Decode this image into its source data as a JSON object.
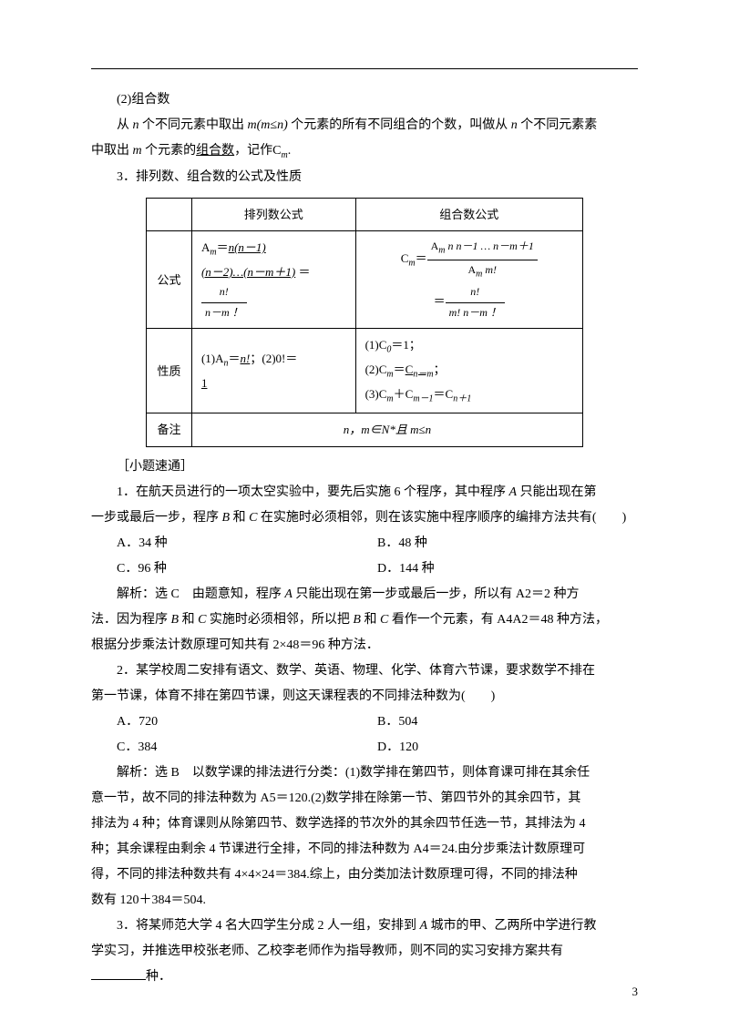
{
  "section1": {
    "title": "(2)组合数",
    "p1_a": "从 ",
    "p1_b": " 个不同元素中取出 ",
    "p1_c": " 个元素的所有不同组合的个数，叫做从 ",
    "p1_d": " 个不同元素素",
    "p1_line2_a": "中取出 ",
    "p1_line2_b": " 个元素的",
    "p1_underline": "组合数",
    "p1_line2_c": "，记作C",
    "p1_line2_d": "."
  },
  "section2_title": "3．排列数、组合数的公式及性质",
  "table": {
    "h_perm": "排列数公式",
    "h_comb": "组合数公式",
    "r1_label": "公式",
    "r1_perm_a": "A",
    "r1_perm_b": "＝",
    "r1_perm_u1": "n(n－1)",
    "r1_perm_u2": "(n－2)…(n－m＋1)",
    "r1_perm_eq": " ＝",
    "r1_frac_num": "n!",
    "r1_frac_den": "n－m ！",
    "r1_comb_a": "C",
    "r1_comb_b": "＝",
    "r1_comb_frac1_num_a": "A",
    "r1_comb_frac1_num_b": " n n－1 … n－m＋1",
    "r1_comb_frac1_den_a": "A",
    "r1_comb_frac1_den_b": " m!",
    "r1_comb_eq": "＝",
    "r1_comb_frac2_num": "n!",
    "r1_comb_frac2_den": "m! n－m ！",
    "r2_label": "性质",
    "r2_perm_a": "(1)A",
    "r2_perm_b": "＝",
    "r2_perm_u": "n!",
    "r2_perm_c": "；(2)0!＝",
    "r2_perm_d": "1",
    "r2_comb_1a": "(1)C",
    "r2_comb_1b": "＝1；",
    "r2_comb_2a": "(2)C",
    "r2_comb_2b": "＝",
    "r2_comb_2u": "C",
    "r2_comb_2c": "；",
    "r2_comb_3a": "(3)C",
    "r2_comb_3b": "＋C",
    "r2_comb_3c": "＝C",
    "r3_label": "备注",
    "r3_note": "n，m∈N*且 m≤n"
  },
  "quiz_header": "［小题速通］",
  "q1": {
    "stem_a": "1．在航天员进行的一项太空实验中，要先后实施 6 个程序，其中程序 ",
    "stem_b": " 只能出现在第",
    "line2_a": "一步或最后一步，程序 ",
    "line2_b": " 和 ",
    "line2_c": " 在实施时必须相邻，则在该实施中程序顺序的编排方法共有(　　)",
    "optA": "A．34 种",
    "optB": "B．48 种",
    "optC": "C．96 种",
    "optD": "D．144 种",
    "ans_a": "解析：选 C　由题意知，程序 ",
    "ans_b": " 只能出现在第一步或最后一步，所以有 A2＝2 种方",
    "ans_line2_a": "法．因为程序 ",
    "ans_line2_b": " 和 ",
    "ans_line2_c": " 实施时必须相邻，所以把 ",
    "ans_line2_d": " 和 ",
    "ans_line2_e": " 看作一个元素，有 A4A2＝48 种方法，",
    "ans_line3": "根据分步乘法计数原理可知共有 2×48＝96 种方法．"
  },
  "q2": {
    "stem_a": "2．某学校周二安排有语文、数学、英语、物理、化学、体育六节课，要求数学不排在",
    "stem_b": "第一节课，体育不排在第四节课，则这天课程表的不同排法种数为(　　)",
    "optA": "A．720",
    "optB": "B．504",
    "optC": "C．384",
    "optD": "D．120",
    "ans1": "解析：选 B　以数学课的排法进行分类：(1)数学排在第四节，则体育课可排在其余任",
    "ans2": "意一节，故不同的排法种数为 A5＝120.(2)数学排在除第一节、第四节外的其余四节，其",
    "ans3": "排法为 4 种；体育课则从除第四节、数学选择的节次外的其余四节任选一节，其排法为 4",
    "ans4": "种；其余课程由剩余 4 节课进行全排，不同的排法种数为 A4＝24.由分步乘法计数原理可",
    "ans5": "得，不同的排法种数共有 4×4×24＝384.综上，由分类加法计数原理可得，不同的排法种",
    "ans6": "数有 120＋384＝504."
  },
  "q3": {
    "stem_a": "3．将某师范大学 4 名大四学生分成 2 人一组，安排到 ",
    "stem_b": " 城市的甲、乙两所中学进行教",
    "line2": "学实习，并推选甲校张老师、乙校李老师作为指导教师，则不同的实习安排方案共有",
    "line3": "种．"
  },
  "page_number": "3",
  "vars": {
    "n": "n",
    "m": "m",
    "mn": "m(m≤n)",
    "mnsub": "m",
    "A": "A",
    "B": "B",
    "C": "C"
  }
}
